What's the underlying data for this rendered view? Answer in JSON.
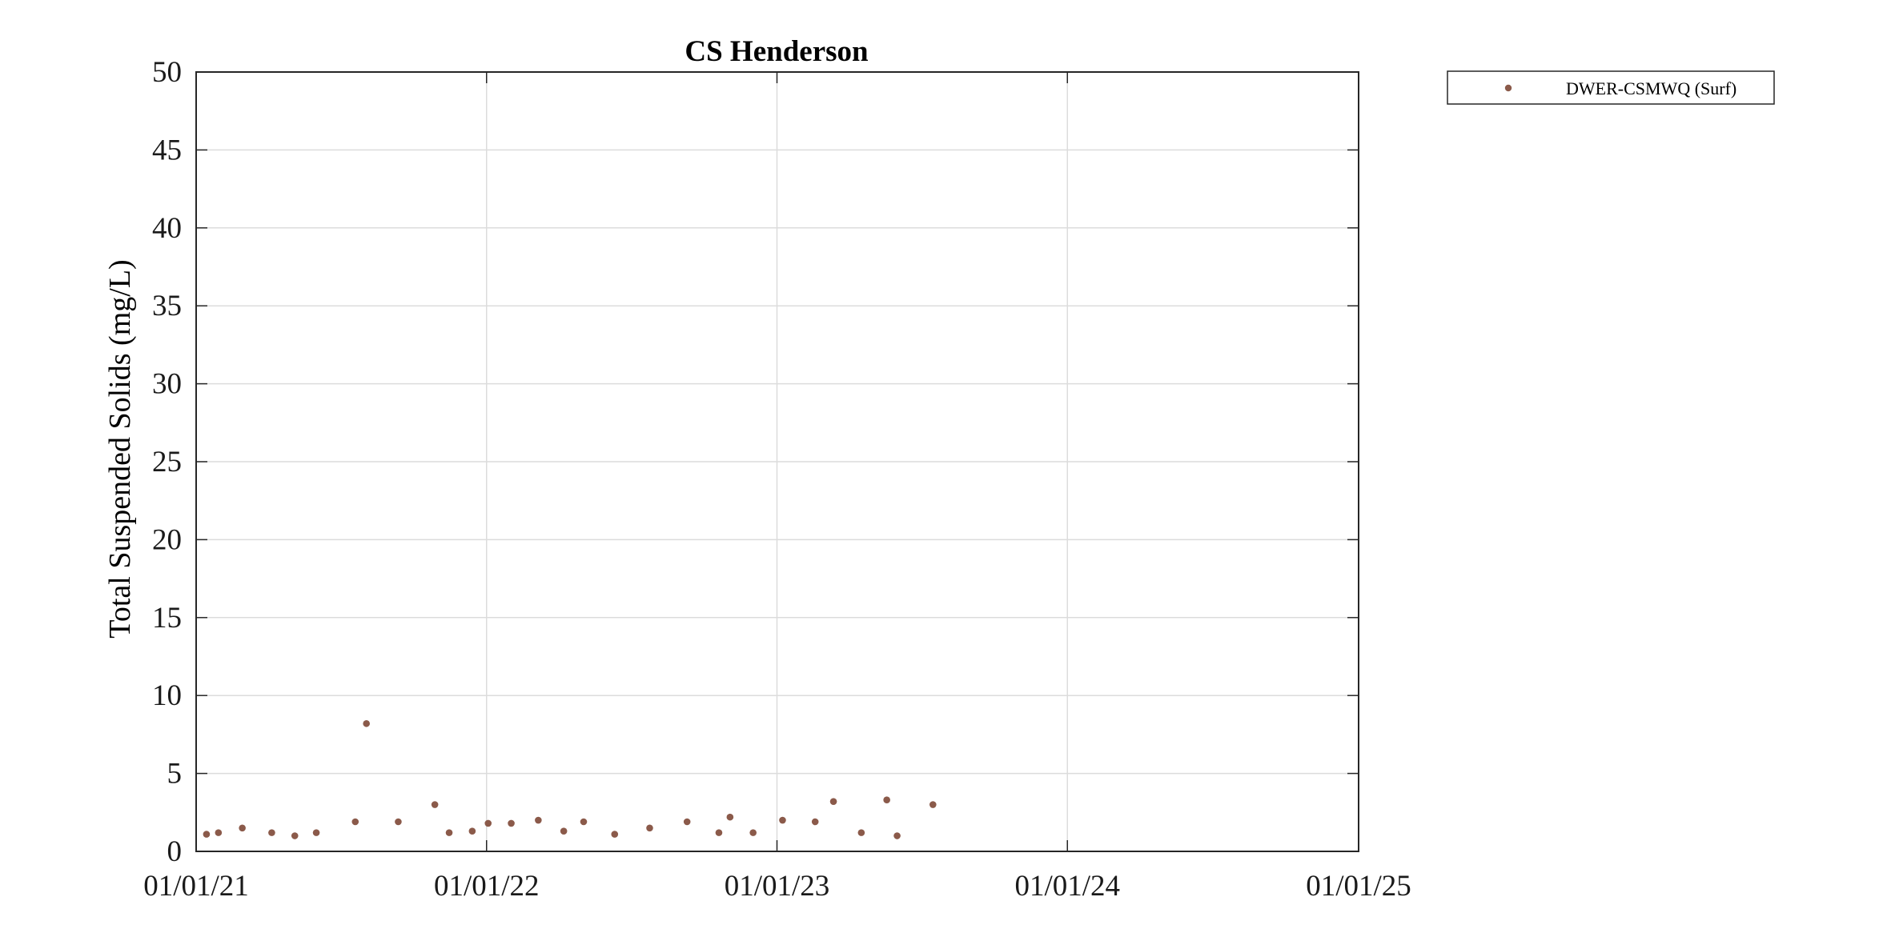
{
  "chart_data": {
    "type": "scatter",
    "title": "CS Henderson",
    "xlabel": "",
    "ylabel": "Total Suspended Solids (mg/L)",
    "xlim": [
      "2021-01-01",
      "2025-01-01"
    ],
    "ylim": [
      0,
      50
    ],
    "x_ticks": [
      "01/01/21",
      "01/01/22",
      "01/01/23",
      "01/01/24",
      "01/01/25"
    ],
    "y_ticks": [
      0,
      5,
      10,
      15,
      20,
      25,
      30,
      35,
      40,
      45,
      50
    ],
    "grid": true,
    "legend_position": "outside-top-right",
    "series": [
      {
        "name": "DWER-CSMWQ (Surf)",
        "color": "#8B5A4A",
        "marker": "dot",
        "points": [
          {
            "x": "2021-01-14",
            "y": 1.1
          },
          {
            "x": "2021-01-29",
            "y": 1.2
          },
          {
            "x": "2021-02-28",
            "y": 1.5
          },
          {
            "x": "2021-04-06",
            "y": 1.2
          },
          {
            "x": "2021-05-05",
            "y": 1.0
          },
          {
            "x": "2021-06-01",
            "y": 1.2
          },
          {
            "x": "2021-07-20",
            "y": 1.9
          },
          {
            "x": "2021-08-03",
            "y": 8.2
          },
          {
            "x": "2021-09-12",
            "y": 1.9
          },
          {
            "x": "2021-10-28",
            "y": 3.0
          },
          {
            "x": "2021-11-15",
            "y": 1.2
          },
          {
            "x": "2021-12-14",
            "y": 1.3
          },
          {
            "x": "2022-01-03",
            "y": 1.8
          },
          {
            "x": "2022-02-01",
            "y": 1.8
          },
          {
            "x": "2022-03-07",
            "y": 2.0
          },
          {
            "x": "2022-04-08",
            "y": 1.3
          },
          {
            "x": "2022-05-03",
            "y": 1.9
          },
          {
            "x": "2022-06-11",
            "y": 1.1
          },
          {
            "x": "2022-07-25",
            "y": 1.5
          },
          {
            "x": "2022-09-10",
            "y": 1.9
          },
          {
            "x": "2022-10-20",
            "y": 1.2
          },
          {
            "x": "2022-11-03",
            "y": 2.2
          },
          {
            "x": "2022-12-02",
            "y": 1.2
          },
          {
            "x": "2023-01-08",
            "y": 2.0
          },
          {
            "x": "2023-02-18",
            "y": 1.9
          },
          {
            "x": "2023-03-13",
            "y": 3.2
          },
          {
            "x": "2023-04-17",
            "y": 1.2
          },
          {
            "x": "2023-05-19",
            "y": 3.3
          },
          {
            "x": "2023-06-01",
            "y": 1.0
          },
          {
            "x": "2023-07-16",
            "y": 3.0
          }
        ]
      }
    ]
  }
}
